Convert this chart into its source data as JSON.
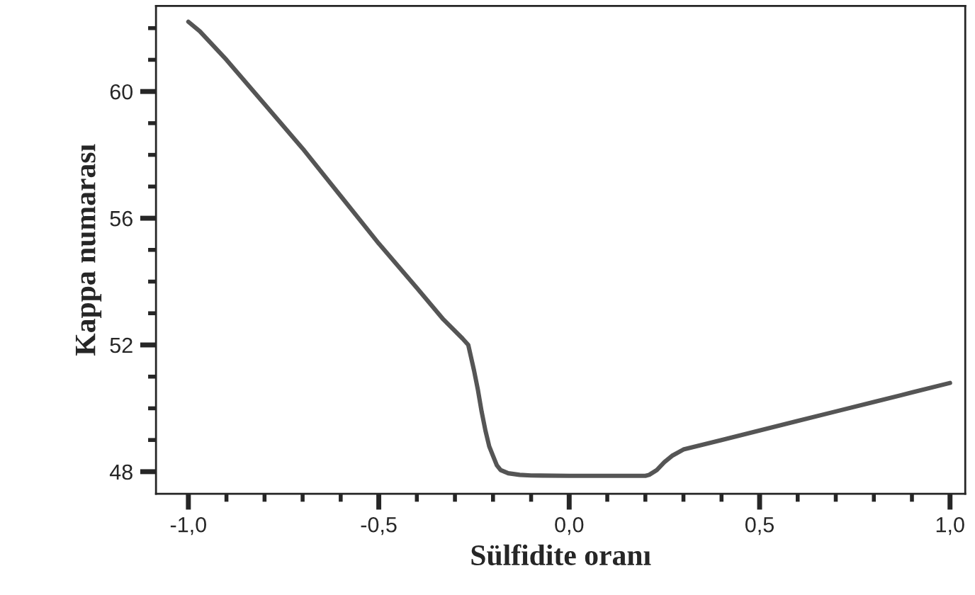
{
  "chart_data": {
    "type": "line",
    "xlabel": "Sülfidite oranı",
    "ylabel": "Kappa numarası",
    "xlim": [
      -1.085,
      1.04
    ],
    "ylim": [
      47.3,
      62.7
    ],
    "xticks": [
      {
        "value": -1.0,
        "label": "-1,0"
      },
      {
        "value": -0.5,
        "label": "-0,5"
      },
      {
        "value": 0.0,
        "label": "0,0"
      },
      {
        "value": 0.5,
        "label": "0,5"
      },
      {
        "value": 1.0,
        "label": "1,0"
      }
    ],
    "yticks": [
      48,
      52,
      56,
      60
    ],
    "grid": false,
    "legend": false,
    "marker": "none",
    "line_style": "solid",
    "series": [
      {
        "color": "#555555",
        "x": [
          -1.0,
          -0.97,
          -0.9,
          -0.8,
          -0.7,
          -0.6,
          -0.5,
          -0.4,
          -0.33,
          -0.28,
          -0.265,
          -0.25,
          -0.24,
          -0.23,
          -0.22,
          -0.21,
          -0.2,
          -0.19,
          -0.18,
          -0.16,
          -0.13,
          -0.1,
          0.0,
          0.1,
          0.2,
          0.21,
          0.23,
          0.25,
          0.27,
          0.3,
          0.4,
          0.5,
          0.6,
          0.7,
          0.8,
          0.9,
          1.0
        ],
        "values": [
          62.2,
          61.9,
          61.0,
          59.6,
          58.2,
          56.7,
          55.2,
          53.8,
          52.8,
          52.2,
          52.0,
          51.2,
          50.6,
          49.9,
          49.3,
          48.8,
          48.5,
          48.2,
          48.05,
          47.95,
          47.9,
          47.88,
          47.87,
          47.87,
          47.87,
          47.9,
          48.05,
          48.3,
          48.5,
          48.7,
          49.0,
          49.3,
          49.6,
          49.9,
          50.2,
          50.5,
          50.8
        ]
      }
    ]
  }
}
